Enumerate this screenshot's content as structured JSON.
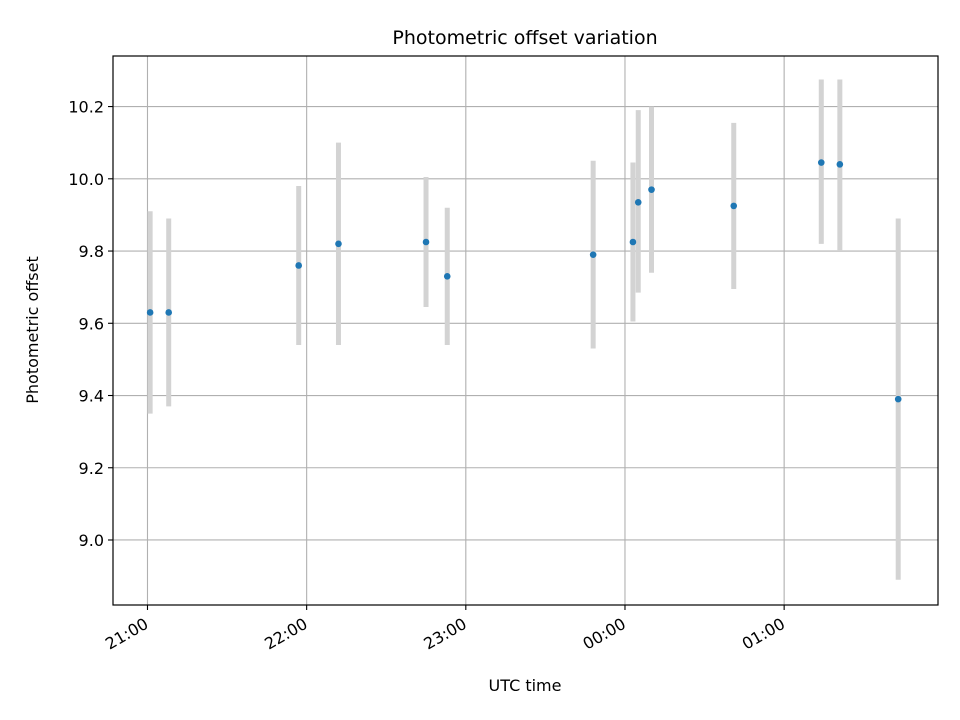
{
  "chart_data": {
    "type": "scatter",
    "title": "Photometric offset variation",
    "xlabel": "UTC time",
    "ylabel": "Photometric offset",
    "x_tick_labels": [
      "21:00",
      "22:00",
      "23:00",
      "00:00",
      "01:00"
    ],
    "y_tick_labels": [
      "9.0",
      "9.2",
      "9.4",
      "9.6",
      "9.8",
      "10.0",
      "10.2"
    ],
    "x_ticks": [
      "21:00",
      "22:00",
      "23:00",
      "00:00",
      "01:00"
    ],
    "y_ticks": [
      9.0,
      9.2,
      9.4,
      9.6,
      9.8,
      10.0,
      10.2
    ],
    "xlim": [
      "20:47",
      "01:58"
    ],
    "ylim": [
      8.82,
      10.34
    ],
    "grid": true,
    "series": [
      {
        "marker_color": "#1f77b4",
        "errorbar_color": "#d3d3d3",
        "points": [
          {
            "x": "21:01",
            "y": 9.63,
            "ylow": 9.35,
            "yhigh": 9.91
          },
          {
            "x": "21:08",
            "y": 9.63,
            "ylow": 9.37,
            "yhigh": 9.89
          },
          {
            "x": "21:57",
            "y": 9.76,
            "ylow": 9.54,
            "yhigh": 9.98
          },
          {
            "x": "22:12",
            "y": 9.82,
            "ylow": 9.54,
            "yhigh": 10.1
          },
          {
            "x": "22:45",
            "y": 9.825,
            "ylow": 9.645,
            "yhigh": 10.005
          },
          {
            "x": "22:53",
            "y": 9.73,
            "ylow": 9.54,
            "yhigh": 9.92
          },
          {
            "x": "23:48",
            "y": 9.79,
            "ylow": 9.53,
            "yhigh": 10.05
          },
          {
            "x": "00:03",
            "y": 9.825,
            "ylow": 9.605,
            "yhigh": 10.045
          },
          {
            "x": "00:05",
            "y": 9.935,
            "ylow": 9.685,
            "yhigh": 10.19
          },
          {
            "x": "00:10",
            "y": 9.97,
            "ylow": 9.74,
            "yhigh": 10.2
          },
          {
            "x": "00:41",
            "y": 9.925,
            "ylow": 9.695,
            "yhigh": 10.155
          },
          {
            "x": "01:14",
            "y": 10.045,
            "ylow": 9.82,
            "yhigh": 10.275
          },
          {
            "x": "01:21",
            "y": 10.04,
            "ylow": 9.8,
            "yhigh": 10.275
          },
          {
            "x": "01:43",
            "y": 9.39,
            "ylow": 8.89,
            "yhigh": 9.89
          }
        ]
      }
    ]
  }
}
